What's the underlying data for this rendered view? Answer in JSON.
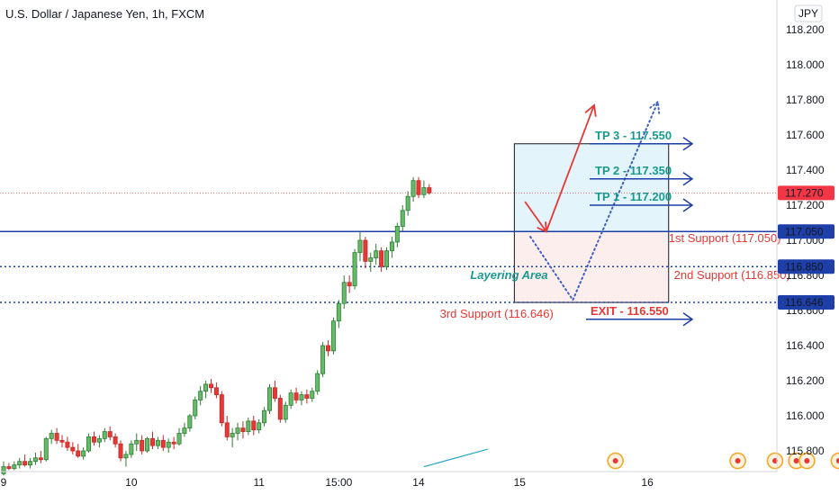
{
  "chart_data": {
    "type": "candlestick",
    "title": "U.S. Dollar / Japanese Yen, 1h, FXCM",
    "currency_label": "JPY",
    "y_ticks": [
      "118.200",
      "118.000",
      "117.800",
      "117.600",
      "117.400",
      "117.200",
      "117.000",
      "116.800",
      "116.600",
      "116.400",
      "116.200",
      "116.000",
      "115.800"
    ],
    "ylim": [
      115.71,
      118.32
    ],
    "x_ticks": [
      {
        "label": "9",
        "bar": 0
      },
      {
        "label": "10",
        "bar": 24
      },
      {
        "label": "11",
        "bar": 48
      },
      {
        "label": "15:00",
        "bar": 63
      },
      {
        "label": "14",
        "bar": 78
      },
      {
        "label": "15",
        "bar": 97
      },
      {
        "label": "16",
        "bar": 121
      }
    ],
    "bars_total": 152,
    "candles": [
      {
        "o": 115.67,
        "h": 115.74,
        "l": 115.66,
        "c": 115.71
      },
      {
        "o": 115.71,
        "h": 115.73,
        "l": 115.69,
        "c": 115.7
      },
      {
        "o": 115.7,
        "h": 115.74,
        "l": 115.69,
        "c": 115.72
      },
      {
        "o": 115.72,
        "h": 115.76,
        "l": 115.7,
        "c": 115.74
      },
      {
        "o": 115.74,
        "h": 115.78,
        "l": 115.71,
        "c": 115.72
      },
      {
        "o": 115.72,
        "h": 115.76,
        "l": 115.7,
        "c": 115.74
      },
      {
        "o": 115.74,
        "h": 115.79,
        "l": 115.72,
        "c": 115.76
      },
      {
        "o": 115.76,
        "h": 115.8,
        "l": 115.73,
        "c": 115.75
      },
      {
        "o": 115.75,
        "h": 115.88,
        "l": 115.74,
        "c": 115.87
      },
      {
        "o": 115.87,
        "h": 115.92,
        "l": 115.84,
        "c": 115.9
      },
      {
        "o": 115.9,
        "h": 115.93,
        "l": 115.84,
        "c": 115.86
      },
      {
        "o": 115.86,
        "h": 115.89,
        "l": 115.82,
        "c": 115.85
      },
      {
        "o": 115.85,
        "h": 115.88,
        "l": 115.8,
        "c": 115.82
      },
      {
        "o": 115.82,
        "h": 115.85,
        "l": 115.78,
        "c": 115.8
      },
      {
        "o": 115.8,
        "h": 115.84,
        "l": 115.76,
        "c": 115.77
      },
      {
        "o": 115.77,
        "h": 115.82,
        "l": 115.75,
        "c": 115.8
      },
      {
        "o": 115.8,
        "h": 115.9,
        "l": 115.79,
        "c": 115.88
      },
      {
        "o": 115.88,
        "h": 115.91,
        "l": 115.83,
        "c": 115.85
      },
      {
        "o": 115.85,
        "h": 115.89,
        "l": 115.82,
        "c": 115.87
      },
      {
        "o": 115.87,
        "h": 115.93,
        "l": 115.85,
        "c": 115.91
      },
      {
        "o": 115.91,
        "h": 115.94,
        "l": 115.86,
        "c": 115.88
      },
      {
        "o": 115.88,
        "h": 115.9,
        "l": 115.82,
        "c": 115.84
      },
      {
        "o": 115.84,
        "h": 115.86,
        "l": 115.74,
        "c": 115.76
      },
      {
        "o": 115.76,
        "h": 115.8,
        "l": 115.71,
        "c": 115.78
      },
      {
        "o": 115.78,
        "h": 115.86,
        "l": 115.76,
        "c": 115.84
      },
      {
        "o": 115.84,
        "h": 115.9,
        "l": 115.8,
        "c": 115.86
      },
      {
        "o": 115.86,
        "h": 115.89,
        "l": 115.78,
        "c": 115.8
      },
      {
        "o": 115.8,
        "h": 115.88,
        "l": 115.79,
        "c": 115.87
      },
      {
        "o": 115.87,
        "h": 115.91,
        "l": 115.81,
        "c": 115.83
      },
      {
        "o": 115.83,
        "h": 115.88,
        "l": 115.81,
        "c": 115.86
      },
      {
        "o": 115.86,
        "h": 115.89,
        "l": 115.8,
        "c": 115.82
      },
      {
        "o": 115.82,
        "h": 115.87,
        "l": 115.79,
        "c": 115.85
      },
      {
        "o": 115.85,
        "h": 115.88,
        "l": 115.81,
        "c": 115.84
      },
      {
        "o": 115.84,
        "h": 115.93,
        "l": 115.83,
        "c": 115.9
      },
      {
        "o": 115.9,
        "h": 115.96,
        "l": 115.88,
        "c": 115.93
      },
      {
        "o": 115.93,
        "h": 116.01,
        "l": 115.91,
        "c": 116.0
      },
      {
        "o": 116.0,
        "h": 116.11,
        "l": 115.98,
        "c": 116.09
      },
      {
        "o": 116.09,
        "h": 116.17,
        "l": 116.06,
        "c": 116.14
      },
      {
        "o": 116.14,
        "h": 116.2,
        "l": 116.1,
        "c": 116.18
      },
      {
        "o": 116.18,
        "h": 116.21,
        "l": 116.13,
        "c": 116.16
      },
      {
        "o": 116.16,
        "h": 116.19,
        "l": 116.1,
        "c": 116.12
      },
      {
        "o": 116.12,
        "h": 116.14,
        "l": 115.94,
        "c": 115.96
      },
      {
        "o": 115.96,
        "h": 116.0,
        "l": 115.86,
        "c": 115.88
      },
      {
        "o": 115.88,
        "h": 115.93,
        "l": 115.82,
        "c": 115.9
      },
      {
        "o": 115.9,
        "h": 115.96,
        "l": 115.86,
        "c": 115.93
      },
      {
        "o": 115.93,
        "h": 115.97,
        "l": 115.87,
        "c": 115.91
      },
      {
        "o": 115.91,
        "h": 115.99,
        "l": 115.89,
        "c": 115.97
      },
      {
        "o": 115.97,
        "h": 116.0,
        "l": 115.89,
        "c": 115.92
      },
      {
        "o": 115.92,
        "h": 115.98,
        "l": 115.9,
        "c": 115.96
      },
      {
        "o": 115.96,
        "h": 116.05,
        "l": 115.94,
        "c": 116.03
      },
      {
        "o": 116.03,
        "h": 116.18,
        "l": 116.01,
        "c": 116.16
      },
      {
        "o": 116.16,
        "h": 116.2,
        "l": 116.08,
        "c": 116.1
      },
      {
        "o": 116.1,
        "h": 116.12,
        "l": 115.96,
        "c": 115.98
      },
      {
        "o": 115.98,
        "h": 116.08,
        "l": 115.96,
        "c": 116.06
      },
      {
        "o": 116.06,
        "h": 116.15,
        "l": 116.04,
        "c": 116.13
      },
      {
        "o": 116.13,
        "h": 116.16,
        "l": 116.07,
        "c": 116.09
      },
      {
        "o": 116.09,
        "h": 116.14,
        "l": 116.06,
        "c": 116.12
      },
      {
        "o": 116.12,
        "h": 116.15,
        "l": 116.07,
        "c": 116.1
      },
      {
        "o": 116.1,
        "h": 116.16,
        "l": 116.08,
        "c": 116.14
      },
      {
        "o": 116.14,
        "h": 116.26,
        "l": 116.12,
        "c": 116.24
      },
      {
        "o": 116.24,
        "h": 116.42,
        "l": 116.22,
        "c": 116.4
      },
      {
        "o": 116.4,
        "h": 116.43,
        "l": 116.34,
        "c": 116.37
      },
      {
        "o": 116.37,
        "h": 116.56,
        "l": 116.35,
        "c": 116.54
      },
      {
        "o": 116.54,
        "h": 116.66,
        "l": 116.5,
        "c": 116.64
      },
      {
        "o": 116.64,
        "h": 116.8,
        "l": 116.61,
        "c": 116.76
      },
      {
        "o": 116.76,
        "h": 116.8,
        "l": 116.7,
        "c": 116.74
      },
      {
        "o": 116.74,
        "h": 116.95,
        "l": 116.72,
        "c": 116.93
      },
      {
        "o": 116.93,
        "h": 117.05,
        "l": 116.88,
        "c": 117.0
      },
      {
        "o": 117.0,
        "h": 117.02,
        "l": 116.84,
        "c": 116.88
      },
      {
        "o": 116.88,
        "h": 116.93,
        "l": 116.82,
        "c": 116.9
      },
      {
        "o": 116.9,
        "h": 116.98,
        "l": 116.86,
        "c": 116.94
      },
      {
        "o": 116.94,
        "h": 116.96,
        "l": 116.82,
        "c": 116.85
      },
      {
        "o": 116.85,
        "h": 116.96,
        "l": 116.83,
        "c": 116.94
      },
      {
        "o": 116.94,
        "h": 117.02,
        "l": 116.9,
        "c": 116.99
      },
      {
        "o": 116.99,
        "h": 117.1,
        "l": 116.96,
        "c": 117.08
      },
      {
        "o": 117.08,
        "h": 117.2,
        "l": 117.05,
        "c": 117.17
      },
      {
        "o": 117.17,
        "h": 117.28,
        "l": 117.14,
        "c": 117.25
      },
      {
        "o": 117.25,
        "h": 117.36,
        "l": 117.22,
        "c": 117.34
      },
      {
        "o": 117.34,
        "h": 117.36,
        "l": 117.24,
        "c": 117.26
      },
      {
        "o": 117.26,
        "h": 117.34,
        "l": 117.24,
        "c": 117.3
      },
      {
        "o": 117.3,
        "h": 117.32,
        "l": 117.26,
        "c": 117.27
      }
    ],
    "price_lines": [
      {
        "value": 117.27,
        "label": "117.270",
        "style": "dotted-red"
      },
      {
        "value": 117.05,
        "label": "117.050",
        "style": "solid-blue"
      },
      {
        "value": 116.85,
        "label": "116.850",
        "style": "dotted-blue"
      },
      {
        "value": 116.646,
        "label": "116.646",
        "style": "dotted-blue"
      }
    ],
    "zones": [
      {
        "bar_from": 96,
        "bar_to": 125,
        "price_from": 117.05,
        "price_to": 117.55,
        "fill": "#e3f4fb"
      },
      {
        "bar_from": 96,
        "bar_to": 125,
        "price_from": 116.646,
        "price_to": 117.05,
        "fill": "#fdeeee"
      }
    ],
    "targets": [
      {
        "label": "TP 3 - 117.550",
        "value": 117.55,
        "color": "#1a9a8f"
      },
      {
        "label": "TP 2 - 117.350",
        "value": 117.35,
        "color": "#1a9a8f"
      },
      {
        "label": "TP 1 - 117.200",
        "value": 117.2,
        "color": "#1a9a8f"
      },
      {
        "label": "EXIT - 116.550",
        "value": 116.55,
        "color": "#e53935"
      }
    ],
    "annotations": [
      {
        "text": "1st Support (117.050)",
        "bar": 125,
        "value": 116.99,
        "color": "#e53935"
      },
      {
        "text": "2nd Support (116.850)",
        "bar": 126,
        "value": 116.78,
        "color": "#e53935"
      },
      {
        "text": "3rd Support (116.646)",
        "bar": 82,
        "value": 116.56,
        "color": "#e53935"
      },
      {
        "text": "Layering Area",
        "bar": 95,
        "value": 116.78,
        "color": "#1a9a8f"
      }
    ],
    "scenario_arrows": [
      {
        "color": "#e53935",
        "style": "solid",
        "points": [
          [
            98,
            117.22
          ],
          [
            102,
            117.05
          ],
          [
            111,
            117.77
          ]
        ]
      },
      {
        "color": "#3b5fc5",
        "style": "dotted",
        "points": [
          [
            99,
            117.02
          ],
          [
            107,
            116.66
          ],
          [
            123,
            117.79
          ]
        ]
      }
    ],
    "ma_line": {
      "color": "#26a6c4",
      "points": [
        [
          79,
          115.71
        ],
        [
          91,
          115.81
        ]
      ]
    },
    "event_marker_bars": [
      115,
      138,
      145,
      149,
      151,
      157,
      166
    ]
  }
}
